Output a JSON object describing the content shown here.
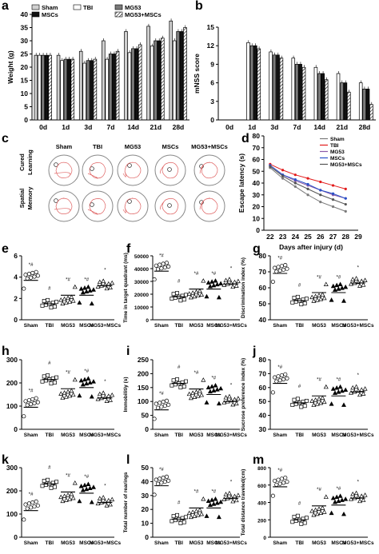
{
  "chart_data": [
    {
      "panel": "a",
      "type": "bar",
      "categories": [
        "0d",
        "1d",
        "3d",
        "7d",
        "14d",
        "21d",
        "28d"
      ],
      "ylabel": "Weight (g)",
      "ylim": [
        0,
        40
      ],
      "yticks": [
        0,
        5,
        10,
        15,
        20,
        25,
        30,
        35,
        40
      ],
      "series": [
        {
          "name": "Sham",
          "values": [
            24.5,
            24.5,
            26,
            30,
            33.5,
            35.5,
            37.5
          ]
        },
        {
          "name": "TBI",
          "values": [
            24.5,
            22.5,
            21.5,
            23,
            25.5,
            28,
            30
          ]
        },
        {
          "name": "MG53",
          "values": [
            24.5,
            23,
            22.5,
            25,
            27,
            30,
            33.5
          ]
        },
        {
          "name": "MSCs",
          "values": [
            24.5,
            23,
            22.5,
            25,
            27,
            30,
            33.5
          ]
        },
        {
          "name": "MG53+MSCs",
          "values": [
            24.5,
            23,
            23,
            26,
            28.5,
            31,
            35
          ]
        }
      ]
    },
    {
      "panel": "b",
      "type": "bar",
      "categories": [
        "0d",
        "1d",
        "3d",
        "7d",
        "14d",
        "21d",
        "28d"
      ],
      "ylabel": "mNSS score",
      "ylim": [
        0,
        15
      ],
      "yticks": [
        0,
        3,
        6,
        9,
        12,
        15
      ],
      "series": [
        {
          "name": "Sham",
          "values": [
            0,
            0,
            0,
            0,
            0,
            0,
            0
          ]
        },
        {
          "name": "TBI",
          "values": [
            0,
            12.5,
            11,
            10,
            8.5,
            7.5,
            6
          ]
        },
        {
          "name": "MG53",
          "values": [
            0,
            12,
            10.5,
            9,
            7.5,
            6,
            5
          ]
        },
        {
          "name": "MSCs",
          "values": [
            0,
            12,
            10.5,
            9,
            7.5,
            6,
            5
          ]
        },
        {
          "name": "MG53+MSCs",
          "values": [
            0,
            11.5,
            10,
            8.5,
            6.5,
            4.5,
            2.5
          ]
        }
      ]
    },
    {
      "panel": "c",
      "type": "table",
      "columns": [
        "Sham",
        "TBI",
        "MG53",
        "MSCs",
        "MG53+MSCs"
      ],
      "rows": [
        "Cured Learning",
        "Spatial Memory"
      ]
    },
    {
      "panel": "d",
      "type": "line",
      "x": [
        22,
        23,
        24,
        25,
        26,
        27,
        28
      ],
      "xticks": [
        22,
        23,
        24,
        25,
        26,
        27,
        28,
        29
      ],
      "xlabel": "Days after injury (d)",
      "ylabel": "Escape latency (s)",
      "ylim": [
        0,
        80
      ],
      "yticks": [
        0,
        10,
        20,
        30,
        40,
        50,
        60,
        70,
        80
      ],
      "series": [
        {
          "name": "Sham",
          "values": [
            53,
            44,
            37,
            30,
            24,
            20,
            16
          ]
        },
        {
          "name": "TBI",
          "values": [
            56,
            51,
            47,
            44,
            41,
            38,
            35
          ]
        },
        {
          "name": "MG53",
          "values": [
            55,
            47,
            42,
            38,
            34,
            30,
            27
          ]
        },
        {
          "name": "MSCs",
          "values": [
            55,
            47,
            43,
            39,
            34,
            31,
            27
          ]
        },
        {
          "name": "MG53+MSCs",
          "values": [
            54,
            46,
            40,
            35,
            30,
            26,
            22
          ]
        }
      ]
    },
    {
      "panel": "e",
      "type": "scatter",
      "categories": [
        "Sham",
        "TBI",
        "MG53",
        "MSCs",
        "MG53+MSCs"
      ],
      "ylabel": "Numbers of Crossing(Times)",
      "ylim": [
        0,
        6
      ],
      "yticks": [
        0,
        2,
        4,
        6
      ],
      "means": [
        3.7,
        1.5,
        2.3,
        2.3,
        3.2
      ],
      "annotations": [
        "*#",
        "#",
        "*#",
        "*#",
        "*"
      ]
    },
    {
      "panel": "f",
      "type": "scatter",
      "categories": [
        "Sham",
        "TBI",
        "MG53",
        "MSCs",
        "MG53+MSCs"
      ],
      "ylabel": "Time in target quadrant (ms)",
      "ylim": [
        0,
        50000
      ],
      "yticks": [
        0,
        10000,
        20000,
        30000,
        40000,
        50000
      ],
      "means": [
        38000,
        18000,
        24000,
        24000,
        28000
      ],
      "annotations": [
        "*#",
        "#",
        "*#",
        "*#",
        "*"
      ]
    },
    {
      "panel": "g",
      "type": "scatter",
      "categories": [
        "Sham",
        "TBI",
        "MG53",
        "MSCs",
        "MG53+MSCs"
      ],
      "ylabel": "Discrimination index (%)",
      "ylim": [
        40,
        80
      ],
      "yticks": [
        40,
        50,
        60,
        70,
        80
      ],
      "means": [
        69,
        52,
        57,
        57,
        63
      ],
      "annotations": [
        "*#",
        "#",
        "*#",
        "*#",
        "*"
      ]
    },
    {
      "panel": "h",
      "type": "scatter",
      "categories": [
        "Sham",
        "TBI",
        "MG53",
        "MSCs",
        "MG53+MSCs"
      ],
      "ylabel": "Immobility time (s)",
      "ylim": [
        0,
        300
      ],
      "yticks": [
        0,
        100,
        200,
        300
      ],
      "means": [
        95,
        215,
        175,
        180,
        135
      ],
      "annotations": [
        "*#",
        "#",
        "*#",
        "*#",
        "*"
      ]
    },
    {
      "panel": "i",
      "type": "scatter",
      "categories": [
        "Sham",
        "TBI",
        "MG53",
        "MSCs",
        "MG53+MSCs"
      ],
      "ylabel": "Immobilitiy (s)",
      "ylim": [
        0,
        250
      ],
      "yticks": [
        0,
        50,
        100,
        150,
        200,
        250
      ],
      "means": [
        70,
        165,
        145,
        125,
        100
      ],
      "annotations": [
        "*#",
        "#",
        "*#",
        "*#",
        "*"
      ]
    },
    {
      "panel": "j",
      "type": "scatter",
      "categories": [
        "Sham",
        "TBI",
        "MG53",
        "MSCs",
        "MG53+MSCs"
      ],
      "ylabel": "Sucrose preference index (%)",
      "ylim": [
        30,
        80
      ],
      "yticks": [
        30,
        40,
        50,
        60,
        70,
        80
      ],
      "means": [
        63,
        49,
        54,
        54,
        57
      ],
      "annotations": [
        "*#",
        "#",
        "*#",
        "*#",
        "*"
      ]
    },
    {
      "panel": "k",
      "type": "scatter",
      "categories": [
        "Sham",
        "TBI",
        "MG53",
        "MSCs",
        "MG53+MSCs"
      ],
      "ylabel": "Time to enter the center (s)",
      "ylim": [
        0,
        300
      ],
      "yticks": [
        0,
        100,
        200,
        300
      ],
      "means": [
        115,
        230,
        195,
        190,
        150
      ],
      "annotations": [
        "*#",
        "#",
        "*#",
        "*#",
        "*"
      ]
    },
    {
      "panel": "l",
      "type": "scatter",
      "categories": [
        "Sham",
        "TBI",
        "MG53",
        "MSCs",
        "MG53+MSCs"
      ],
      "ylabel": "Total number of rearings",
      "ylim": [
        0,
        50
      ],
      "yticks": [
        0,
        10,
        20,
        30,
        40,
        50
      ],
      "means": [
        37,
        13,
        21,
        21,
        28
      ],
      "annotations": [
        "*#",
        "#",
        "*#",
        "*#",
        "*"
      ]
    },
    {
      "panel": "m",
      "type": "scatter",
      "categories": [
        "Sham",
        "TBI",
        "MG53",
        "MSCs",
        "MG53+MSCs"
      ],
      "ylabel": "Total distance traveled(cm)",
      "ylim": [
        0,
        800
      ],
      "yticks": [
        0,
        200,
        400,
        600,
        800
      ],
      "means": [
        580,
        200,
        360,
        370,
        450
      ],
      "annotations": [
        "*#",
        "#",
        "*#",
        "*#",
        "*"
      ]
    }
  ]
}
